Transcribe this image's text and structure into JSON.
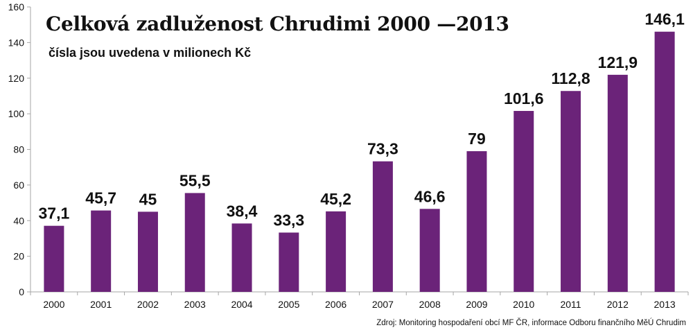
{
  "title": "Celková zadluženost Chrudimi 2000 —2013",
  "subtitle": "čísla jsou uvedena v milionech Kč",
  "source": "Zdroj: Monitoring hospodaření obcí MF ČR, informace Odboru finančního MěÚ Chrudim",
  "colors": {
    "bar": "#6b2379",
    "axis": "#a6a6a6",
    "text": "#111111"
  },
  "chart_data": {
    "type": "bar",
    "title": "Celková zadluženost Chrudimi 2000 —2013",
    "subtitle": "čísla jsou uvedena v milionech Kč",
    "categories": [
      "2000",
      "2001",
      "2002",
      "2003",
      "2004",
      "2005",
      "2006",
      "2007",
      "2008",
      "2009",
      "2010",
      "2011",
      "2012",
      "2013"
    ],
    "values": [
      37.1,
      45.7,
      45,
      55.5,
      38.4,
      33.3,
      45.2,
      73.3,
      46.6,
      79,
      101.6,
      112.8,
      121.9,
      146.1
    ],
    "value_labels": [
      "37,1",
      "45,7",
      "45",
      "55,5",
      "38,4",
      "33,3",
      "45,2",
      "73,3",
      "46,6",
      "79",
      "101,6",
      "112,8",
      "121,9",
      "146,1"
    ],
    "ylim": [
      0,
      160
    ],
    "yticks": [
      0,
      20,
      40,
      60,
      80,
      100,
      120,
      140,
      160
    ],
    "xlabel": "",
    "ylabel": "",
    "grid": false,
    "legend": "none"
  }
}
